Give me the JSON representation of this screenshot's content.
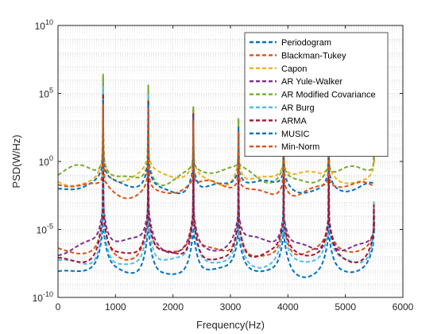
{
  "chart_data": {
    "type": "line",
    "title": "",
    "xlabel": "Frequency(Hz)",
    "ylabel": "PSD(W/Hz)",
    "xlim": [
      0,
      6000
    ],
    "ylim_log10": [
      -10,
      10
    ],
    "y_scale": "log",
    "grid": "major and minor, dotted",
    "legend_position": "top-right",
    "x_ticks": [
      0,
      1000,
      2000,
      3000,
      4000,
      5000,
      6000
    ],
    "x_tick_labels": [
      "0",
      "1000",
      "2000",
      "3000",
      "4000",
      "5000",
      "6000"
    ],
    "y_ticks_exp": [
      -10,
      -5,
      0,
      5,
      10
    ],
    "y_tick_labels": [
      {
        "base": "10",
        "exp": "-10"
      },
      {
        "base": "10",
        "exp": "-5"
      },
      {
        "base": "10",
        "exp": "0"
      },
      {
        "base": "10",
        "exp": "5"
      },
      {
        "base": "10",
        "exp": "10"
      }
    ],
    "peak_frequencies": [
      785,
      1570,
      2355,
      3140,
      3925,
      4710,
      5495
    ],
    "series": [
      {
        "name": "Periodogram",
        "color": "#0072BD",
        "baseline_log10": -8.2,
        "near_peak_log10": -6.3,
        "peak_log10": [
          6.3,
          5.3,
          3.8,
          2.3,
          1.8,
          1.8,
          -3.5
        ]
      },
      {
        "name": "Blackman-Tukey",
        "color": "#D95319",
        "baseline_log10": -6.8,
        "near_peak_log10": -5.5,
        "peak_log10": [
          5.0,
          4.5,
          3.5,
          2.0,
          1.5,
          1.5,
          -3.0
        ]
      },
      {
        "name": "Capon",
        "color": "#EDB120",
        "baseline_log10": -1.3,
        "near_peak_log10": -0.8,
        "peak_log10": [
          6.2,
          5.5,
          4.0,
          3.0,
          2.0,
          2.0,
          0.8
        ]
      },
      {
        "name": "AR Yule-Walker",
        "color": "#7E2F8E",
        "baseline_log10": -6.2,
        "near_peak_log10": -5.8,
        "peak_log10": [
          4.5,
          4.0,
          3.0,
          2.0,
          1.5,
          1.5,
          -3.5
        ]
      },
      {
        "name": "AR Modified Covariance",
        "color": "#77AC30",
        "baseline_log10": -1.1,
        "near_peak_log10": -0.6,
        "peak_log10": [
          6.4,
          5.6,
          4.0,
          3.2,
          2.0,
          2.0,
          0.9
        ]
      },
      {
        "name": "AR Burg",
        "color": "#4DBEEE",
        "baseline_log10": -7.5,
        "near_peak_log10": -6.0,
        "peak_log10": [
          5.5,
          5.0,
          3.5,
          2.0,
          1.8,
          1.8,
          -3.0
        ]
      },
      {
        "name": "ARMA",
        "color": "#A2142F",
        "baseline_log10": -7.0,
        "near_peak_log10": -5.8,
        "peak_log10": [
          5.0,
          4.5,
          3.5,
          2.0,
          1.5,
          1.5,
          -3.2
        ]
      },
      {
        "name": "MUSIC",
        "color": "#0072BD",
        "baseline_log10": -1.9,
        "near_peak_log10": -1.6,
        "peak_log10": [
          4.5,
          4.2,
          3.2,
          2.5,
          1.8,
          1.8,
          -1.8
        ]
      },
      {
        "name": "Min-Norm",
        "color": "#D95319",
        "baseline_log10": -2.1,
        "near_peak_log10": -1.8,
        "peak_log10": [
          4.2,
          4.0,
          3.0,
          2.2,
          1.6,
          1.6,
          -2.0
        ]
      }
    ]
  }
}
